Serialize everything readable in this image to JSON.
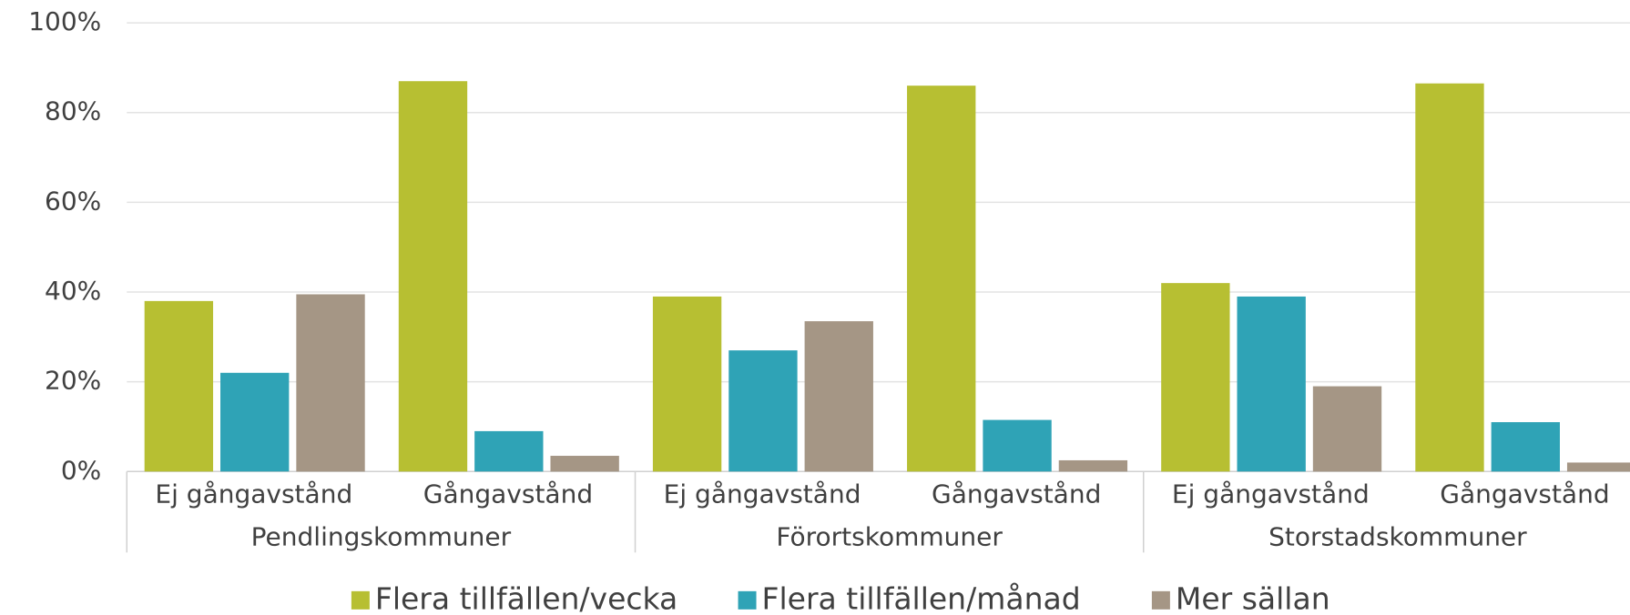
{
  "chart_data": {
    "type": "bar",
    "categories": [
      "Ej gångavstånd",
      "Gångavstånd",
      "Ej gångavstånd",
      "Gångavstånd",
      "Ej gångavstånd",
      "Gångavstånd"
    ],
    "groups": [
      "Pendlingskommuner",
      "Förortskommuner",
      "Storstadskommuner"
    ],
    "series": [
      {
        "name": "Flera tillfällen/vecka",
        "color": "#b7bf32",
        "values": [
          38,
          87,
          39,
          86,
          42,
          86.5
        ]
      },
      {
        "name": "Flera tillfällen/månad",
        "color": "#2fa3b6",
        "values": [
          22,
          9,
          27,
          11.5,
          39,
          11
        ]
      },
      {
        "name": "Mer sällan",
        "color": "#a59685",
        "values": [
          39.5,
          3.5,
          33.5,
          2.5,
          19,
          2
        ]
      }
    ],
    "ylim": [
      0,
      100
    ],
    "yticks": [
      {
        "value": 0,
        "label": "0%"
      },
      {
        "value": 20,
        "label": "20%"
      },
      {
        "value": 40,
        "label": "40%"
      },
      {
        "value": 60,
        "label": "60%"
      },
      {
        "value": 80,
        "label": "80%"
      },
      {
        "value": 100,
        "label": "100%"
      }
    ],
    "grid": true
  }
}
